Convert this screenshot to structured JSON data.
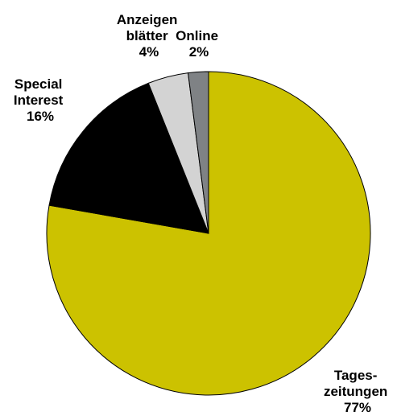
{
  "chart_data": {
    "type": "pie",
    "title": "",
    "start_angle_deg": 0,
    "direction": "clockwise",
    "slices": [
      {
        "label_lines": [
          "Tages-",
          "zeitungen"
        ],
        "percent_label": "77%",
        "value": 77,
        "color": "#CCC200"
      },
      {
        "label_lines": [
          "Special",
          "Interest"
        ],
        "percent_label": "16%",
        "value": 16,
        "color": "#000000"
      },
      {
        "label_lines": [
          "Anzeigen",
          "blätter"
        ],
        "percent_label": "4%",
        "value": 4,
        "color": "#D3D3D3"
      },
      {
        "label_lines": [
          "Online"
        ],
        "percent_label": "2%",
        "value": 2,
        "color": "#7F8285"
      }
    ]
  }
}
